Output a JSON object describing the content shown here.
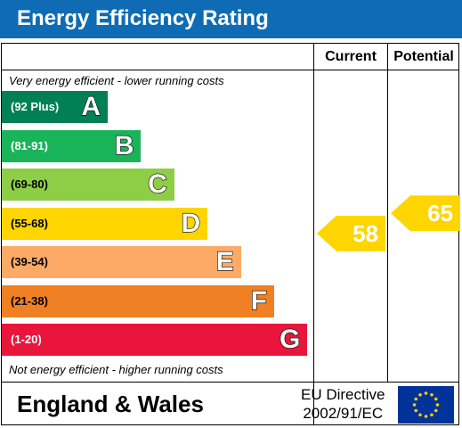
{
  "title": "Energy Efficiency Rating",
  "columns": {
    "current": "Current",
    "potential": "Potential"
  },
  "captions": {
    "top": "Very energy efficient - lower running costs",
    "bottom": "Not energy efficient - higher running costs"
  },
  "footer": {
    "region": "England & Wales",
    "directive_line1": "EU Directive",
    "directive_line2": "2002/91/EC"
  },
  "chart_data": {
    "type": "bar",
    "title": "Energy Efficiency Rating",
    "categories": [
      "A",
      "B",
      "C",
      "D",
      "E",
      "F",
      "G"
    ],
    "bands": [
      {
        "letter": "A",
        "range": "(92 Plus)",
        "min": 92,
        "max": 100,
        "color": "#008054"
      },
      {
        "letter": "B",
        "range": "(81-91)",
        "min": 81,
        "max": 91,
        "color": "#19b459"
      },
      {
        "letter": "C",
        "range": "(69-80)",
        "min": 69,
        "max": 80,
        "color": "#8dce46"
      },
      {
        "letter": "D",
        "range": "(55-68)",
        "min": 55,
        "max": 68,
        "color": "#ffd500"
      },
      {
        "letter": "E",
        "range": "(39-54)",
        "min": 39,
        "max": 54,
        "color": "#fcaa65"
      },
      {
        "letter": "F",
        "range": "(21-38)",
        "min": 21,
        "max": 38,
        "color": "#ef8023"
      },
      {
        "letter": "G",
        "range": "(1-20)",
        "min": 1,
        "max": 20,
        "color": "#e9153b"
      }
    ],
    "series": [
      {
        "name": "Current",
        "value": 58,
        "band": "D",
        "color": "#ffd500"
      },
      {
        "name": "Potential",
        "value": 65,
        "band": "D",
        "color": "#ffd500"
      }
    ]
  }
}
